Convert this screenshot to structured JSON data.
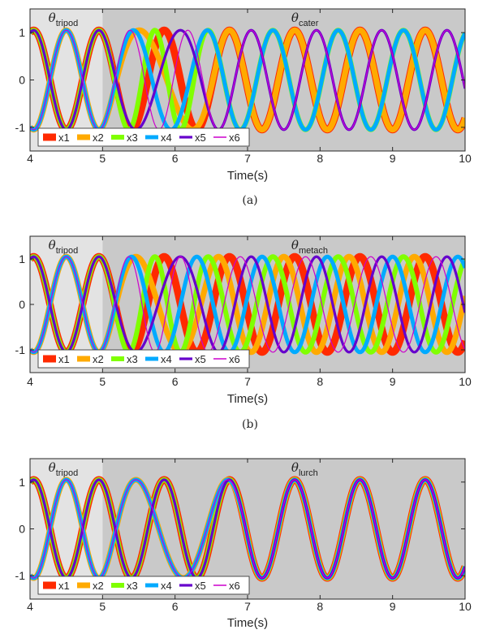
{
  "chart_data": [
    {
      "type": "line",
      "caption": "(a)",
      "xlabel": "Time(s)",
      "ylabel": "",
      "xlim": [
        4,
        10
      ],
      "ylim": [
        -1.5,
        1.5
      ],
      "xticks": [
        4,
        5,
        6,
        7,
        8,
        9,
        10
      ],
      "yticks": [
        -1,
        0,
        1
      ],
      "regions": [
        {
          "label": "θ",
          "sub": "tripod",
          "x_range": [
            4,
            5
          ],
          "color": "#e3e3e3"
        },
        {
          "label": "θ",
          "sub": "cater",
          "x_range": [
            5,
            10
          ],
          "color": "#c9c9c9"
        }
      ],
      "legend": {
        "position": "bottom-left",
        "entries": [
          "x1",
          "x2",
          "x3",
          "x4",
          "x5",
          "x6"
        ]
      },
      "period_s": 0.9,
      "amplitude": 1.05,
      "transition_end_s": 6.6,
      "series": [
        {
          "name": "x1",
          "color": "#ff2a00",
          "initial_phase_deg": 0,
          "final_phase_deg": 0
        },
        {
          "name": "x2",
          "color": "#ffaa00",
          "initial_phase_deg": 180,
          "final_phase_deg": 0
        },
        {
          "name": "x3",
          "color": "#80ff00",
          "initial_phase_deg": 0,
          "final_phase_deg": 120
        },
        {
          "name": "x4",
          "color": "#00aaff",
          "initial_phase_deg": 180,
          "final_phase_deg": 120
        },
        {
          "name": "x5",
          "color": "#6600cc",
          "initial_phase_deg": 0,
          "final_phase_deg": 240
        },
        {
          "name": "x6",
          "color": "#cc00cc",
          "initial_phase_deg": 180,
          "final_phase_deg": 240
        }
      ]
    },
    {
      "type": "line",
      "caption": "(b)",
      "xlabel": "Time(s)",
      "ylabel": "",
      "xlim": [
        4,
        10
      ],
      "ylim": [
        -1.5,
        1.5
      ],
      "xticks": [
        4,
        5,
        6,
        7,
        8,
        9,
        10
      ],
      "yticks": [
        -1,
        0,
        1
      ],
      "regions": [
        {
          "label": "θ",
          "sub": "tripod",
          "x_range": [
            4,
            5
          ],
          "color": "#e3e3e3"
        },
        {
          "label": "θ",
          "sub": "metach",
          "x_range": [
            5,
            10
          ],
          "color": "#c9c9c9"
        }
      ],
      "legend": {
        "position": "bottom-left",
        "entries": [
          "x1",
          "x2",
          "x3",
          "x4",
          "x5",
          "x6"
        ]
      },
      "period_s": 0.9,
      "amplitude": 1.05,
      "transition_end_s": 6.6,
      "series": [
        {
          "name": "x1",
          "color": "#ff2a00",
          "initial_phase_deg": 0,
          "final_phase_deg": 0
        },
        {
          "name": "x2",
          "color": "#ffaa00",
          "initial_phase_deg": 180,
          "final_phase_deg": 60
        },
        {
          "name": "x3",
          "color": "#80ff00",
          "initial_phase_deg": 0,
          "final_phase_deg": 120
        },
        {
          "name": "x4",
          "color": "#00aaff",
          "initial_phase_deg": 180,
          "final_phase_deg": 180
        },
        {
          "name": "x5",
          "color": "#6600cc",
          "initial_phase_deg": 0,
          "final_phase_deg": 240
        },
        {
          "name": "x6",
          "color": "#cc00cc",
          "initial_phase_deg": 180,
          "final_phase_deg": 300
        }
      ]
    },
    {
      "type": "line",
      "caption": "",
      "xlabel": "Time(s)",
      "ylabel": "",
      "xlim": [
        4,
        10
      ],
      "ylim": [
        -1.5,
        1.5
      ],
      "xticks": [
        4,
        5,
        6,
        7,
        8,
        9,
        10
      ],
      "yticks": [
        -1,
        0,
        1
      ],
      "regions": [
        {
          "label": "θ",
          "sub": "tripod",
          "x_range": [
            4,
            5
          ],
          "color": "#e3e3e3"
        },
        {
          "label": "θ",
          "sub": "lurch",
          "x_range": [
            5,
            10
          ],
          "color": "#c9c9c9"
        }
      ],
      "legend": {
        "position": "bottom-left",
        "entries": [
          "x1",
          "x2",
          "x3",
          "x4",
          "x5",
          "x6"
        ]
      },
      "period_s": 0.9,
      "amplitude": 1.05,
      "transition_end_s": 7.0,
      "series": [
        {
          "name": "x1",
          "color": "#ff2a00",
          "initial_phase_deg": 0,
          "final_phase_deg": 0
        },
        {
          "name": "x2",
          "color": "#ffaa00",
          "initial_phase_deg": 180,
          "final_phase_deg": 0
        },
        {
          "name": "x3",
          "color": "#80ff00",
          "initial_phase_deg": 0,
          "final_phase_deg": 0
        },
        {
          "name": "x4",
          "color": "#00aaff",
          "initial_phase_deg": 180,
          "final_phase_deg": 0
        },
        {
          "name": "x5",
          "color": "#6600cc",
          "initial_phase_deg": 0,
          "final_phase_deg": 0
        },
        {
          "name": "x6",
          "color": "#cc00cc",
          "initial_phase_deg": 180,
          "final_phase_deg": 0
        }
      ]
    }
  ]
}
